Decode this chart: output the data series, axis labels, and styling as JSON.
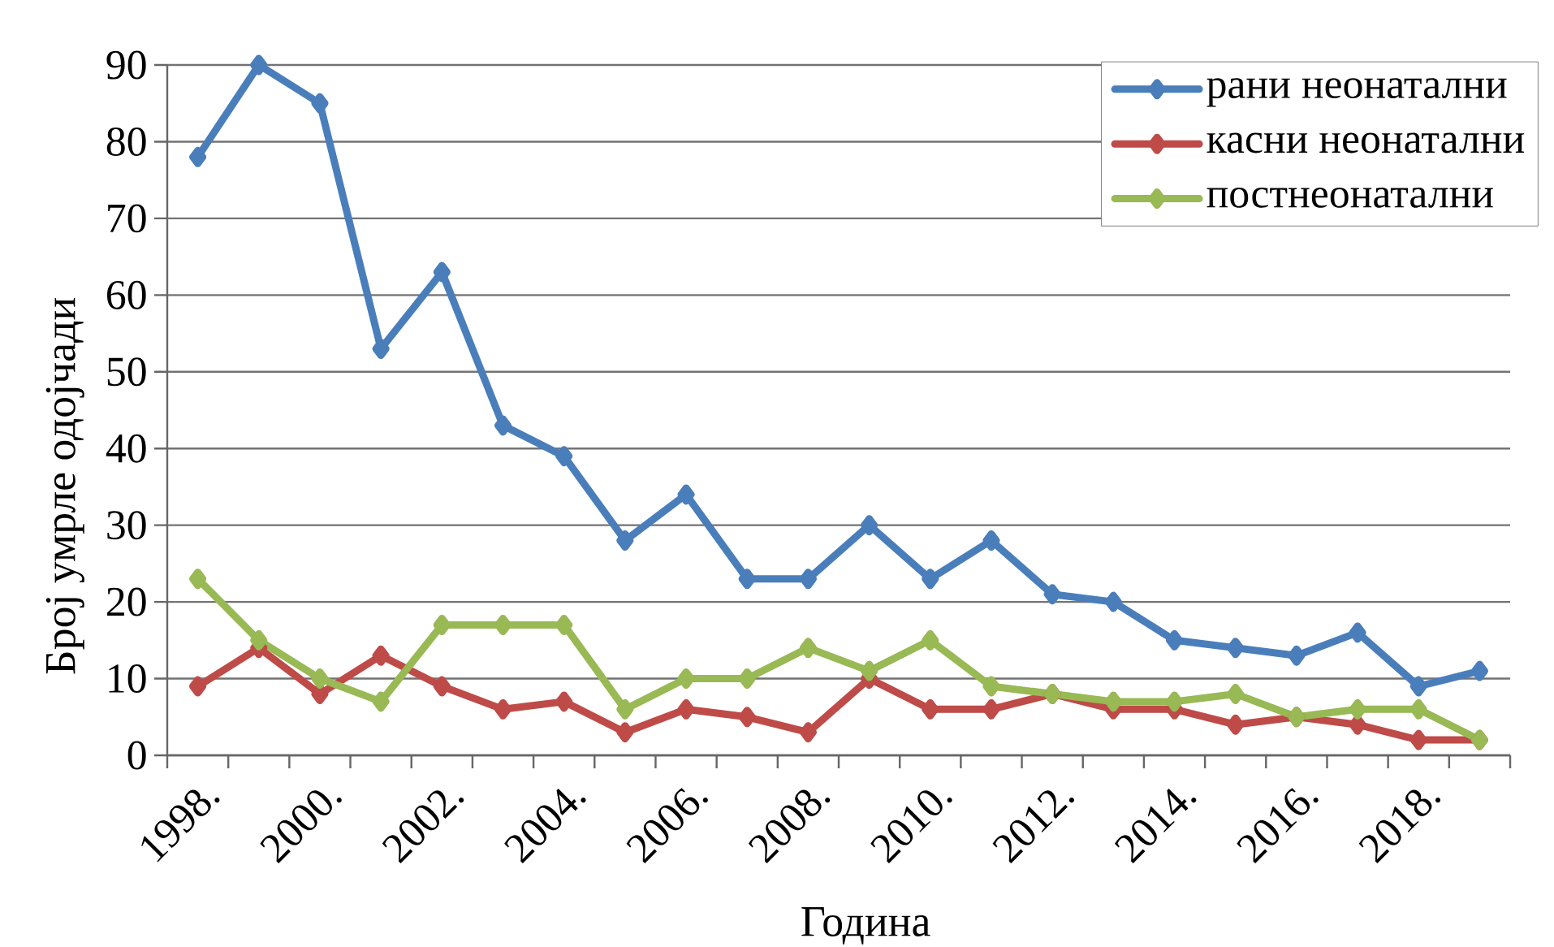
{
  "chart_data": {
    "type": "line",
    "xlabel": "Година",
    "ylabel": "Број умрле одојчади",
    "categories": [
      "1998.",
      null,
      "2000.",
      null,
      "2002.",
      null,
      "2004.",
      null,
      "2006.",
      null,
      "2008.",
      null,
      "2010.",
      null,
      "2012.",
      null,
      "2014.",
      null,
      "2016.",
      null,
      "2018.",
      null
    ],
    "series": [
      {
        "name": "рани неонатални",
        "color": "#4a7ebb",
        "values": [
          78,
          90,
          85,
          53,
          63,
          43,
          39,
          28,
          34,
          23,
          23,
          30,
          23,
          28,
          21,
          20,
          15,
          14,
          13,
          16,
          9,
          11
        ]
      },
      {
        "name": "касни неонатални",
        "color": "#be4b48",
        "values": [
          9,
          14,
          8,
          13,
          9,
          6,
          7,
          3,
          6,
          5,
          3,
          10,
          6,
          6,
          8,
          6,
          6,
          4,
          5,
          4,
          2,
          2
        ]
      },
      {
        "name": "постнеонатални",
        "color": "#98b954",
        "values": [
          23,
          15,
          10,
          7,
          17,
          17,
          17,
          6,
          10,
          10,
          14,
          11,
          15,
          9,
          8,
          7,
          7,
          8,
          5,
          6,
          6,
          2
        ]
      }
    ],
    "ylim": [
      0,
      90
    ],
    "yticks": [
      0,
      10,
      20,
      30,
      40,
      50,
      60,
      70,
      80,
      90
    ],
    "grid": "y",
    "legend": "top right",
    "marker": "diamond",
    "line_style": "solid"
  }
}
